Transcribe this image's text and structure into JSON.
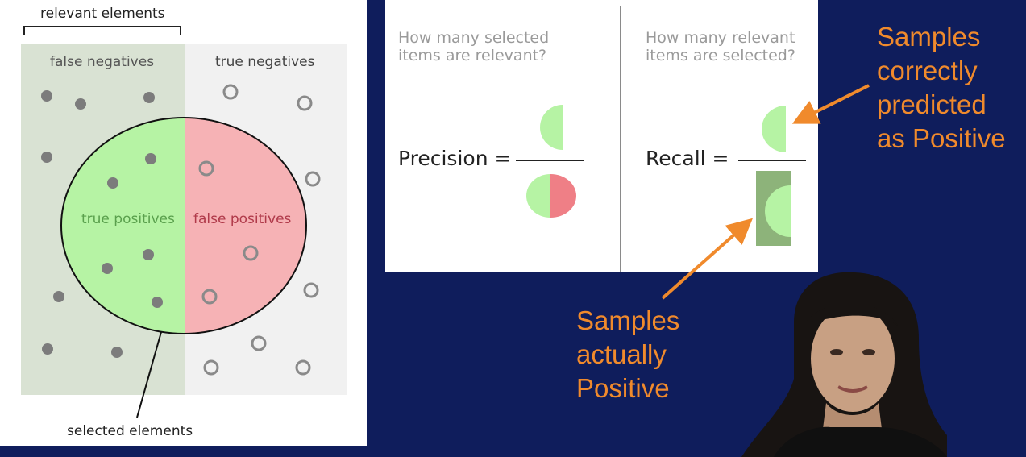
{
  "venn": {
    "relevant_label": "relevant elements",
    "false_negatives": "false negatives",
    "true_negatives": "true negatives",
    "true_positives": "true positives",
    "false_positives": "false positives",
    "selected_label": "selected elements"
  },
  "precision": {
    "question": [
      "How many selected",
      "items are relevant?"
    ],
    "formula": "Precision ="
  },
  "recall": {
    "question": [
      "How many relevant",
      "items are selected?"
    ],
    "formula": "Recall ="
  },
  "annotations": {
    "correct": [
      "Samples",
      "correctly",
      "predicted",
      "as Positive"
    ],
    "actual": [
      "Samples",
      "actually",
      "Positive"
    ]
  },
  "colors": {
    "background": "#0f1d5c",
    "relevant_region": "#d9e2d3",
    "irrelevant_region": "#f1f1f1",
    "true_positive": "#b6f3a4",
    "false_positive": "#f6b2b5",
    "recall_bar": "#8db37a",
    "annotation_text": "#f08a2c"
  },
  "icons": [
    "filled-dot-icon",
    "hollow-circle-icon",
    "presenter-photo"
  ]
}
